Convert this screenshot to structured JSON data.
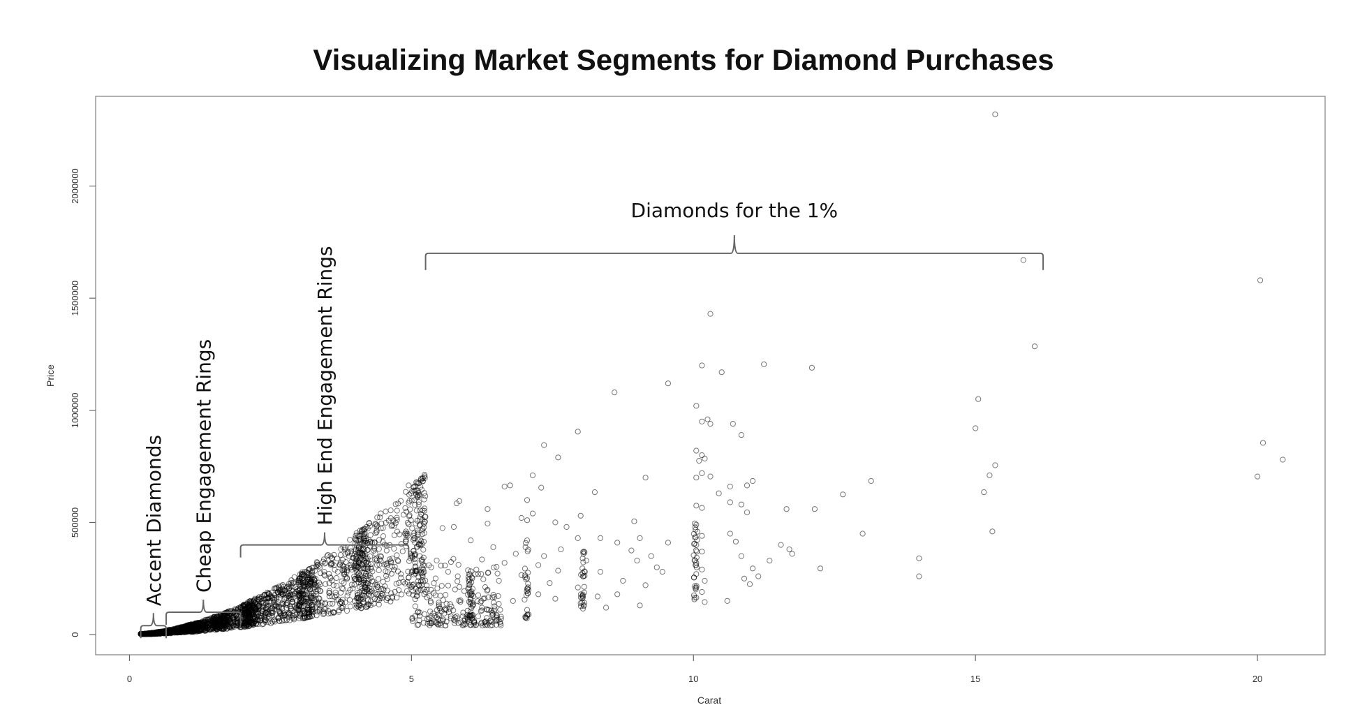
{
  "chart_data": {
    "type": "scatter",
    "title": "Visualizing Market Segments for Diamond Purchases",
    "xlabel": "Carat",
    "ylabel": "Price",
    "xlim": [
      -0.6,
      21.2
    ],
    "ylim": [
      -90000,
      2400000
    ],
    "xticks": [
      0,
      5,
      10,
      15,
      20
    ],
    "xtick_labels": [
      "0",
      "5",
      "10",
      "15",
      "20"
    ],
    "yticks": [
      0,
      500000,
      1000000,
      1500000,
      2000000
    ],
    "ytick_labels": [
      "0",
      "500000",
      "1000000",
      "1500000",
      "2000000"
    ],
    "grid": false,
    "legend": "none",
    "marker_color": "#000000",
    "annotations": [
      {
        "text": "Accent Diamonds",
        "x_range": [
          0.2,
          0.65
        ],
        "at_price": 40000,
        "orientation": "vertical"
      },
      {
        "text": "Cheap Engagement Rings",
        "x_range": [
          0.65,
          1.97
        ],
        "at_price": 100000,
        "orientation": "vertical"
      },
      {
        "text": "High End Engagement Rings",
        "x_range": [
          1.97,
          4.95
        ],
        "at_price": 400000,
        "orientation": "vertical"
      },
      {
        "text": "Diamonds for the 1%",
        "x_range": [
          5.25,
          16.2
        ],
        "at_price": 1700000,
        "orientation": "horizontal"
      }
    ],
    "points": [
      [
        15.35,
        2320000
      ],
      [
        15.85,
        1670000
      ],
      [
        20.05,
        1580000
      ],
      [
        10.3,
        1430000
      ],
      [
        16.05,
        1285000
      ],
      [
        10.15,
        1200000
      ],
      [
        11.25,
        1205000
      ],
      [
        12.1,
        1190000
      ],
      [
        10.5,
        1170000
      ],
      [
        9.55,
        1120000
      ],
      [
        8.6,
        1080000
      ],
      [
        15.05,
        1050000
      ],
      [
        10.05,
        1020000
      ],
      [
        10.15,
        950000
      ],
      [
        10.25,
        960000
      ],
      [
        10.3,
        940000
      ],
      [
        10.7,
        940000
      ],
      [
        15.0,
        920000
      ],
      [
        7.95,
        905000
      ],
      [
        10.85,
        890000
      ],
      [
        20.1,
        855000
      ],
      [
        7.35,
        845000
      ],
      [
        10.05,
        820000
      ],
      [
        10.15,
        800000
      ],
      [
        10.2,
        785000
      ],
      [
        10.1,
        775000
      ],
      [
        7.6,
        790000
      ],
      [
        20.45,
        780000
      ],
      [
        15.35,
        755000
      ],
      [
        10.15,
        720000
      ],
      [
        10.05,
        700000
      ],
      [
        10.3,
        705000
      ],
      [
        9.15,
        700000
      ],
      [
        15.25,
        710000
      ],
      [
        20.0,
        705000
      ],
      [
        10.95,
        665000
      ],
      [
        11.05,
        685000
      ],
      [
        13.15,
        685000
      ],
      [
        10.65,
        660000
      ],
      [
        7.15,
        710000
      ],
      [
        4.95,
        665000
      ],
      [
        6.65,
        660000
      ],
      [
        6.75,
        665000
      ],
      [
        7.3,
        655000
      ],
      [
        15.15,
        635000
      ],
      [
        12.65,
        625000
      ],
      [
        10.45,
        630000
      ],
      [
        8.25,
        635000
      ],
      [
        7.05,
        600000
      ],
      [
        5.85,
        595000
      ],
      [
        5.8,
        585000
      ],
      [
        10.05,
        575000
      ],
      [
        10.15,
        565000
      ],
      [
        10.65,
        590000
      ],
      [
        10.85,
        580000
      ],
      [
        6.35,
        560000
      ],
      [
        11.65,
        560000
      ],
      [
        12.15,
        560000
      ],
      [
        10.95,
        545000
      ],
      [
        7.15,
        540000
      ],
      [
        8.0,
        530000
      ],
      [
        6.95,
        520000
      ],
      [
        7.05,
        510000
      ],
      [
        5.15,
        515000
      ],
      [
        8.95,
        505000
      ],
      [
        7.55,
        500000
      ],
      [
        6.35,
        495000
      ],
      [
        10.05,
        490000
      ],
      [
        7.75,
        480000
      ],
      [
        5.55,
        475000
      ],
      [
        5.75,
        480000
      ],
      [
        15.3,
        460000
      ],
      [
        10.65,
        450000
      ],
      [
        13.0,
        450000
      ],
      [
        10.15,
        440000
      ],
      [
        7.95,
        430000
      ],
      [
        8.35,
        430000
      ],
      [
        9.05,
        430000
      ],
      [
        6.05,
        420000
      ],
      [
        7.05,
        420000
      ],
      [
        8.65,
        410000
      ],
      [
        9.55,
        410000
      ],
      [
        10.75,
        415000
      ],
      [
        11.55,
        400000
      ],
      [
        10.05,
        400000
      ],
      [
        6.45,
        390000
      ],
      [
        7.65,
        380000
      ],
      [
        8.9,
        375000
      ],
      [
        11.7,
        380000
      ],
      [
        10.15,
        370000
      ],
      [
        11.75,
        360000
      ],
      [
        6.85,
        360000
      ],
      [
        7.35,
        350000
      ],
      [
        9.25,
        350000
      ],
      [
        10.85,
        350000
      ],
      [
        14.0,
        340000
      ],
      [
        6.25,
        335000
      ],
      [
        8.1,
        330000
      ],
      [
        9.0,
        330000
      ],
      [
        11.35,
        330000
      ],
      [
        10.05,
        320000
      ],
      [
        6.65,
        320000
      ],
      [
        7.25,
        310000
      ],
      [
        9.35,
        300000
      ],
      [
        12.25,
        295000
      ],
      [
        11.05,
        295000
      ],
      [
        10.15,
        290000
      ],
      [
        7.6,
        285000
      ],
      [
        8.35,
        280000
      ],
      [
        9.45,
        280000
      ],
      [
        5.35,
        300000
      ],
      [
        5.65,
        280000
      ],
      [
        6.15,
        290000
      ],
      [
        10.05,
        270000
      ],
      [
        14.0,
        260000
      ],
      [
        6.95,
        265000
      ],
      [
        8.05,
        260000
      ],
      [
        10.9,
        250000
      ],
      [
        11.15,
        260000
      ],
      [
        10.2,
        240000
      ],
      [
        6.55,
        240000
      ],
      [
        7.45,
        230000
      ],
      [
        8.75,
        240000
      ],
      [
        9.15,
        220000
      ],
      [
        11.0,
        225000
      ],
      [
        10.05,
        210000
      ],
      [
        7.95,
        210000
      ],
      [
        6.35,
        200000
      ],
      [
        8.65,
        180000
      ],
      [
        10.15,
        190000
      ],
      [
        7.25,
        180000
      ],
      [
        8.3,
        170000
      ],
      [
        10.05,
        165000
      ],
      [
        7.55,
        160000
      ],
      [
        10.6,
        150000
      ],
      [
        8.0,
        140000
      ],
      [
        6.8,
        150000
      ],
      [
        10.2,
        145000
      ],
      [
        9.05,
        130000
      ],
      [
        6.25,
        120000
      ],
      [
        7.05,
        110000
      ],
      [
        8.45,
        120000
      ],
      [
        6.05,
        90000
      ],
      [
        5.95,
        70000
      ],
      [
        6.5,
        60000
      ]
    ]
  }
}
